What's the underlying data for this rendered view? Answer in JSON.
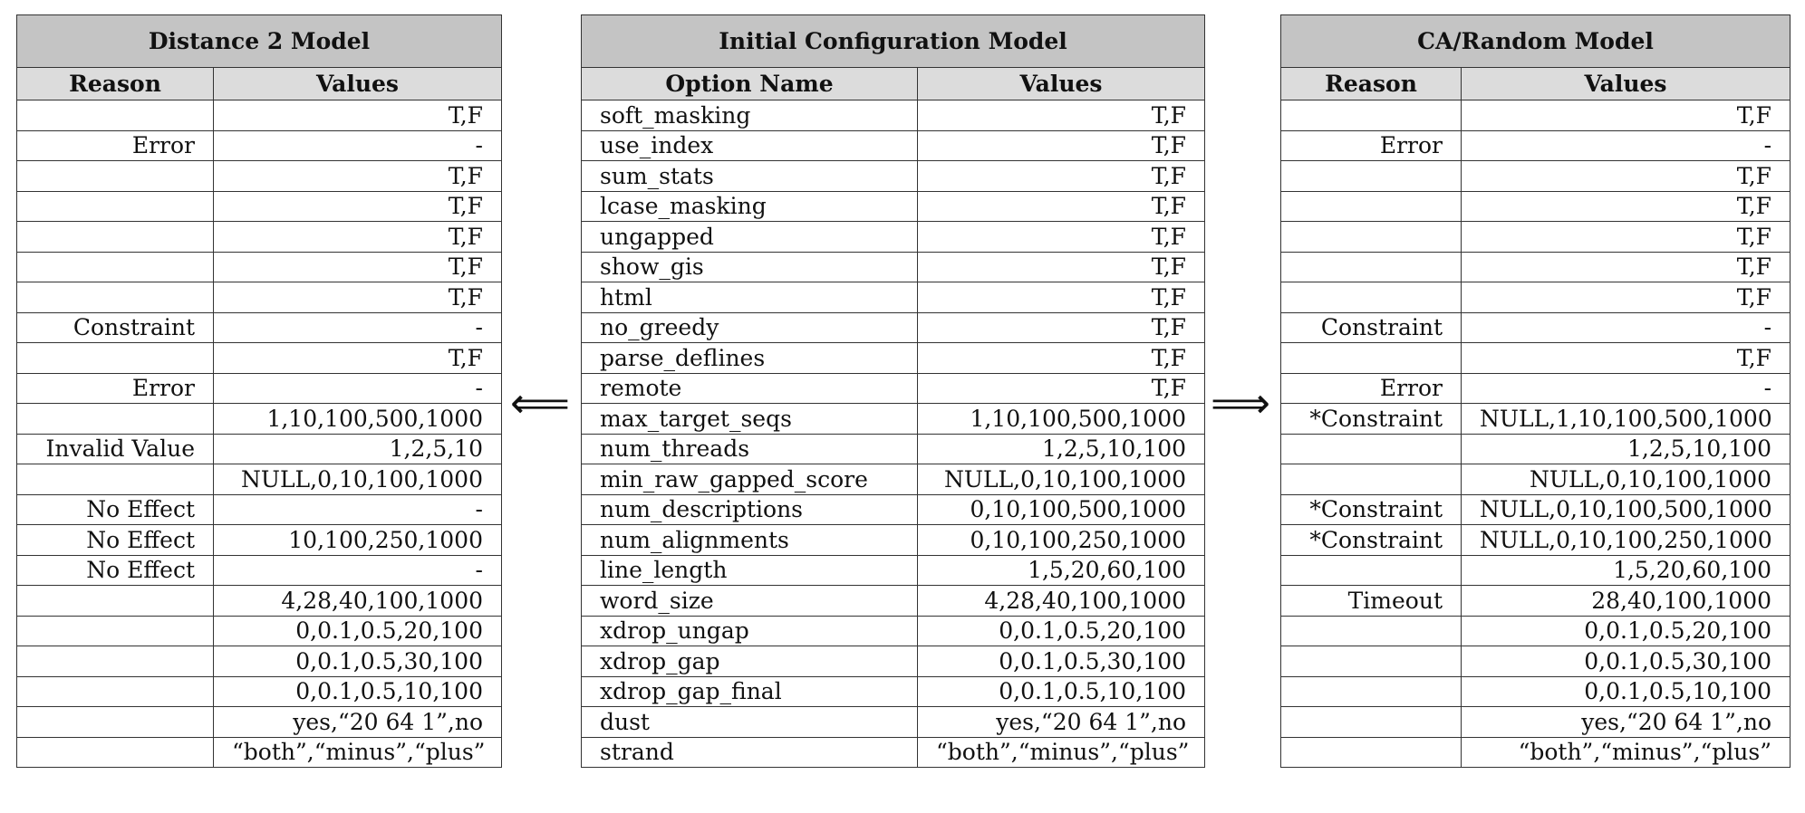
{
  "left_table": {
    "title": "Distance 2 Model",
    "headers": [
      "Reason",
      "Values"
    ],
    "rows": [
      [
        "",
        "T,F"
      ],
      [
        "Error",
        "-"
      ],
      [
        "",
        "T,F"
      ],
      [
        "",
        "T,F"
      ],
      [
        "",
        "T,F"
      ],
      [
        "",
        "T,F"
      ],
      [
        "",
        "T,F"
      ],
      [
        "Constraint",
        "-"
      ],
      [
        "",
        "T,F"
      ],
      [
        "Error",
        "-"
      ],
      [
        "",
        "1,10,100,500,1000"
      ],
      [
        "Invalid Value",
        "1,2,5,10"
      ],
      [
        "",
        "NULL,0,10,100,1000"
      ],
      [
        "No Effect",
        "-"
      ],
      [
        "No Effect",
        "10,100,250,1000"
      ],
      [
        "No Effect",
        "-"
      ],
      [
        "",
        "4,28,40,100,1000"
      ],
      [
        "",
        "0,0.1,0.5,20,100"
      ],
      [
        "",
        "0,0.1,0.5,30,100"
      ],
      [
        "",
        "0,0.1,0.5,10,100"
      ],
      [
        "",
        "yes,“20 64 1”,no"
      ],
      [
        "",
        "“both”,“minus”,“plus”"
      ]
    ]
  },
  "middle_table": {
    "title": "Initial Configuration Model",
    "headers": [
      "Option Name",
      "Values"
    ],
    "rows": [
      [
        "soft_masking",
        "T,F"
      ],
      [
        "use_index",
        "T,F"
      ],
      [
        "sum_stats",
        "T,F"
      ],
      [
        "lcase_masking",
        "T,F"
      ],
      [
        "ungapped",
        "T,F"
      ],
      [
        "show_gis",
        "T,F"
      ],
      [
        "html",
        "T,F"
      ],
      [
        "no_greedy",
        "T,F"
      ],
      [
        "parse_deflines",
        "T,F"
      ],
      [
        "remote",
        "T,F"
      ],
      [
        "max_target_seqs",
        "1,10,100,500,1000"
      ],
      [
        "num_threads",
        "1,2,5,10,100"
      ],
      [
        "min_raw_gapped_score",
        "NULL,0,10,100,1000"
      ],
      [
        "num_descriptions",
        "0,10,100,500,1000"
      ],
      [
        "num_alignments",
        "0,10,100,250,1000"
      ],
      [
        "line_length",
        "1,5,20,60,100"
      ],
      [
        "word_size",
        "4,28,40,100,1000"
      ],
      [
        "xdrop_ungap",
        "0,0.1,0.5,20,100"
      ],
      [
        "xdrop_gap",
        "0,0.1,0.5,30,100"
      ],
      [
        "xdrop_gap_final",
        "0,0.1,0.5,10,100"
      ],
      [
        "dust",
        "yes,“20 64 1”,no"
      ],
      [
        "strand",
        "“both”,“minus”,“plus”"
      ]
    ]
  },
  "right_table": {
    "title": "CA/Random Model",
    "headers": [
      "Reason",
      "Values"
    ],
    "rows": [
      [
        "",
        "T,F"
      ],
      [
        "Error",
        "-"
      ],
      [
        "",
        "T,F"
      ],
      [
        "",
        "T,F"
      ],
      [
        "",
        "T,F"
      ],
      [
        "",
        "T,F"
      ],
      [
        "",
        "T,F"
      ],
      [
        "Constraint",
        "-"
      ],
      [
        "",
        "T,F"
      ],
      [
        "Error",
        "-"
      ],
      [
        "*Constraint",
        "NULL,1,10,100,500,1000"
      ],
      [
        "",
        "1,2,5,10,100"
      ],
      [
        "",
        "NULL,0,10,100,1000"
      ],
      [
        "*Constraint",
        "NULL,0,10,100,500,1000"
      ],
      [
        "*Constraint",
        "NULL,0,10,100,250,1000"
      ],
      [
        "",
        "1,5,20,60,100"
      ],
      [
        "Timeout",
        "28,40,100,1000"
      ],
      [
        "",
        "0,0.1,0.5,20,100"
      ],
      [
        "",
        "0,0.1,0.5,30,100"
      ],
      [
        "",
        "0,0.1,0.5,10,100"
      ],
      [
        "",
        "yes,“20 64 1”,no"
      ],
      [
        "",
        "“both”,“minus”,“plus”"
      ]
    ]
  },
  "arrows": {
    "left": "⟸",
    "right": "⟹"
  }
}
